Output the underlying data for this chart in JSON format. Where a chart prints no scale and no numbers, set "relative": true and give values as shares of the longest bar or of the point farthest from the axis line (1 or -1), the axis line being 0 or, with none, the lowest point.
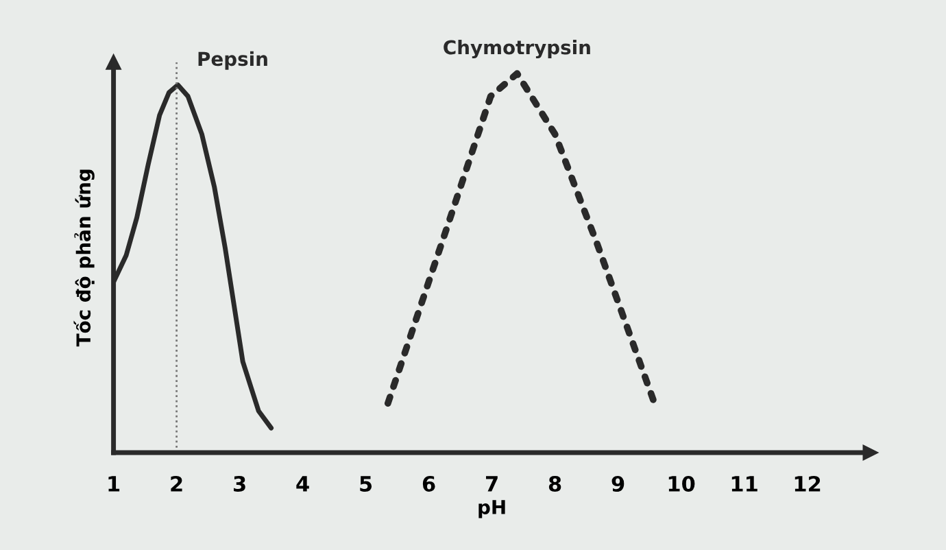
{
  "chart_data": {
    "type": "line",
    "relative": true,
    "xlabel": "pH",
    "ylabel": "Tốc độ phản ứng",
    "xlim": [
      1,
      13
    ],
    "xticks": [
      1,
      2,
      3,
      4,
      5,
      6,
      7,
      8,
      9,
      10,
      11,
      12
    ],
    "grid": false,
    "legend": false,
    "marker": "none",
    "series": [
      {
        "name": "Pepsin",
        "color": "#2a2a2a",
        "line_style": "solid",
        "x": [
          1,
          1.2,
          1.37,
          1.55,
          1.73,
          1.88,
          2.02,
          2.18,
          2.4,
          2.6,
          2.77,
          3.05,
          3.3,
          3.5
        ],
        "values": [
          0.45,
          0.52,
          0.62,
          0.76,
          0.89,
          0.95,
          0.97,
          0.94,
          0.84,
          0.7,
          0.54,
          0.24,
          0.11,
          0.065
        ]
      },
      {
        "name": "Chymotrypsin",
        "color": "#2a2a2a",
        "line_style": "dotted",
        "x": [
          5.35,
          6.32,
          6.98,
          7.4,
          8.0,
          8.67,
          9.6
        ],
        "values": [
          0.13,
          0.61,
          0.94,
          1.0,
          0.84,
          0.55,
          0.12
        ]
      }
    ],
    "ref_lines": [
      {
        "axis": "x",
        "value": 2,
        "label": null,
        "line_style": "dotted",
        "color": "#777777"
      }
    ]
  }
}
